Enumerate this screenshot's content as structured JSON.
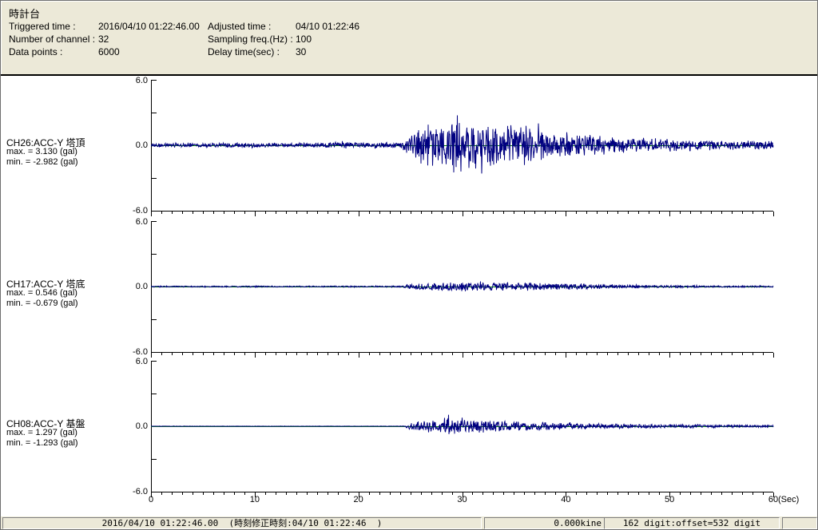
{
  "header": {
    "title": "時計台",
    "fields": [
      {
        "label": "Triggered time :",
        "value": "2016/04/10 01:22:46.00"
      },
      {
        "label": "Adjusted time :",
        "value": "04/10 01:22:46"
      },
      {
        "label": "Number of channel :",
        "value": "32"
      },
      {
        "label": "Sampling freq.(Hz) :",
        "value": "100"
      },
      {
        "label": "Data points :",
        "value": "6000"
      },
      {
        "label": "Delay time(sec) :",
        "value": "30"
      }
    ]
  },
  "xaxis": {
    "xlim": [
      0,
      60
    ],
    "ticks": [
      0,
      10,
      20,
      30,
      40,
      50,
      60
    ],
    "minor_step": 1,
    "unit": "(Sec)"
  },
  "chart_data": [
    {
      "type": "line",
      "channel": "CH26:ACC-Y 塔頂",
      "max_label": "max. = 3.130 (gal)",
      "min_label": "min. = -2.982 (gal)",
      "max": 3.13,
      "min": -2.982,
      "unit": "gal",
      "ylim": [
        -6.0,
        6.0
      ],
      "yticks_all": [
        6,
        3,
        0,
        -3,
        -6
      ],
      "ytick_labels": [
        "6.0",
        "0.0",
        "-6.0"
      ],
      "envelope": [
        [
          0,
          0.22
        ],
        [
          15,
          0.24
        ],
        [
          17.5,
          0.28
        ],
        [
          18.5,
          0.45
        ],
        [
          19,
          0.3
        ],
        [
          20.5,
          0.42
        ],
        [
          21,
          0.3
        ],
        [
          23,
          0.35
        ],
        [
          24,
          0.32
        ],
        [
          24.8,
          0.9
        ],
        [
          25.5,
          1.6
        ],
        [
          27,
          2.2
        ],
        [
          28.5,
          2.3
        ],
        [
          29.5,
          3.1
        ],
        [
          30.5,
          2.4
        ],
        [
          31.5,
          2.7
        ],
        [
          32.5,
          3.0
        ],
        [
          33.5,
          2.3
        ],
        [
          35,
          2.0
        ],
        [
          36.5,
          2.2
        ],
        [
          38,
          1.6
        ],
        [
          40,
          1.3
        ],
        [
          42,
          1.15
        ],
        [
          44,
          0.9
        ],
        [
          46,
          0.8
        ],
        [
          48,
          0.7
        ],
        [
          50,
          0.62
        ],
        [
          53,
          0.52
        ],
        [
          56,
          0.48
        ],
        [
          58,
          0.45
        ],
        [
          60,
          0.42
        ]
      ]
    },
    {
      "type": "line",
      "channel": "CH17:ACC-Y 塔底",
      "max_label": "max. = 0.546 (gal)",
      "min_label": "min. = -0.679 (gal)",
      "max": 0.546,
      "min": -0.679,
      "unit": "gal",
      "ylim": [
        -6.0,
        6.0
      ],
      "yticks_all": [
        6,
        3,
        0,
        -3,
        -6
      ],
      "ytick_labels": [
        "6.0",
        "0.0",
        "-6.0"
      ],
      "envelope": [
        [
          0,
          0.06
        ],
        [
          20,
          0.07
        ],
        [
          24,
          0.08
        ],
        [
          25,
          0.25
        ],
        [
          26,
          0.35
        ],
        [
          28,
          0.4
        ],
        [
          29,
          0.55
        ],
        [
          30,
          0.45
        ],
        [
          32,
          0.5
        ],
        [
          34,
          0.42
        ],
        [
          36,
          0.45
        ],
        [
          38,
          0.38
        ],
        [
          40,
          0.32
        ],
        [
          42,
          0.28
        ],
        [
          44,
          0.22
        ],
        [
          46,
          0.18
        ],
        [
          48,
          0.15
        ],
        [
          50,
          0.13
        ],
        [
          54,
          0.1
        ],
        [
          60,
          0.08
        ]
      ]
    },
    {
      "type": "line",
      "channel": "CH08:ACC-Y 基盤",
      "max_label": "max. = 1.297 (gal)",
      "min_label": "min. = -1.293 (gal)",
      "max": 1.297,
      "min": -1.293,
      "unit": "gal",
      "ylim": [
        -6.0,
        6.0
      ],
      "yticks_all": [
        6,
        3,
        0,
        -3,
        -6
      ],
      "ytick_labels": [
        "6.0",
        "0.0",
        "-6.0"
      ],
      "envelope": [
        [
          0,
          0.02
        ],
        [
          23,
          0.02
        ],
        [
          24.5,
          0.04
        ],
        [
          25,
          0.5
        ],
        [
          26,
          0.55
        ],
        [
          27,
          0.6
        ],
        [
          28,
          0.65
        ],
        [
          28.8,
          1.3
        ],
        [
          29.3,
          0.8
        ],
        [
          30,
          0.9
        ],
        [
          31,
          0.68
        ],
        [
          32,
          0.72
        ],
        [
          33,
          0.6
        ],
        [
          34,
          0.55
        ],
        [
          35,
          0.5
        ],
        [
          37,
          0.42
        ],
        [
          39,
          0.38
        ],
        [
          41,
          0.32
        ],
        [
          43,
          0.28
        ],
        [
          45,
          0.25
        ],
        [
          47,
          0.22
        ],
        [
          49,
          0.2
        ],
        [
          52,
          0.17
        ],
        [
          55,
          0.15
        ],
        [
          58,
          0.13
        ],
        [
          60,
          0.12
        ]
      ]
    }
  ],
  "status_bar": {
    "time_text": "2016/04/10 01:22:46.00  (時刻修正時刻:04/10 01:22:46  )",
    "kine_text": "0.000kine",
    "digit_text": "162 digit:offset=532 digit"
  },
  "colors": {
    "waveform": "#000080",
    "zero_line": "#008000",
    "axis": "#000000",
    "header_bg": "#ece9d8",
    "status_bg": "#ece9d8",
    "plot_bg": "#ffffff"
  }
}
